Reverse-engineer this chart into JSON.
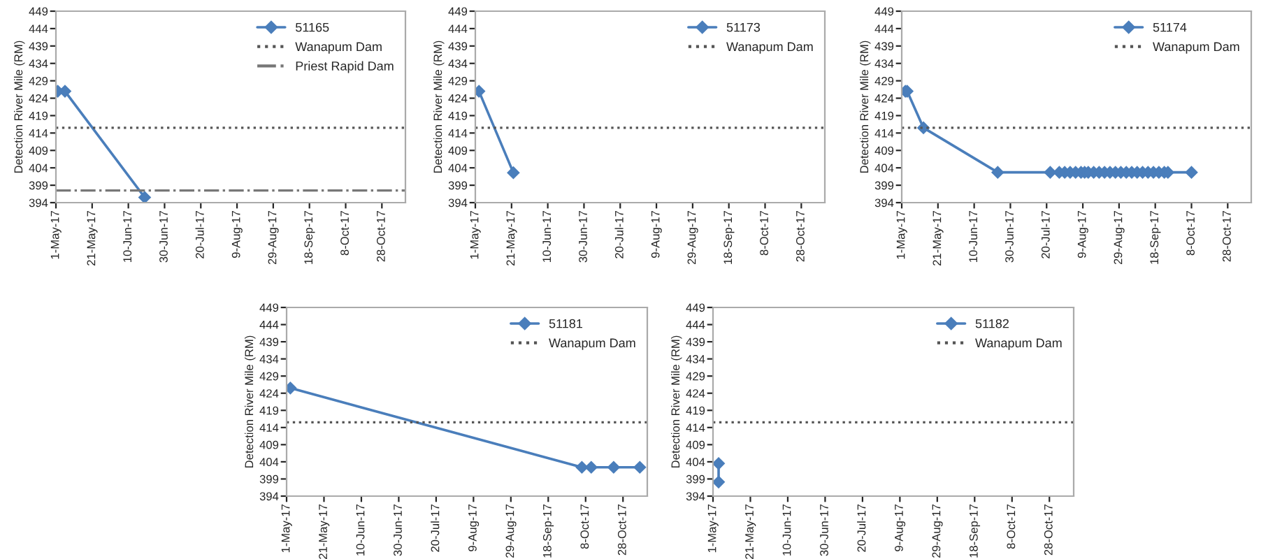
{
  "chart_data": [
    {
      "type": "line",
      "ylabel": "Detection River Mile (RM)",
      "xlim": [
        "2017-05-01",
        "2017-11-10"
      ],
      "ylim": [
        394,
        449
      ],
      "yticks": [
        394,
        399,
        404,
        409,
        414,
        419,
        424,
        429,
        434,
        439,
        444,
        449
      ],
      "xticks": [
        {
          "value": "2017-05-01",
          "label": "1-May-17"
        },
        {
          "value": "2017-05-21",
          "label": "21-May-17"
        },
        {
          "value": "2017-06-10",
          "label": "10-Jun-17"
        },
        {
          "value": "2017-06-30",
          "label": "30-Jun-17"
        },
        {
          "value": "2017-07-20",
          "label": "20-Jul-17"
        },
        {
          "value": "2017-08-09",
          "label": "9-Aug-17"
        },
        {
          "value": "2017-08-29",
          "label": "29-Aug-17"
        },
        {
          "value": "2017-09-18",
          "label": "18-Sep-17"
        },
        {
          "value": "2017-10-08",
          "label": "8-Oct-17"
        },
        {
          "value": "2017-10-28",
          "label": "28-Oct-17"
        }
      ],
      "series": [
        {
          "name": "51165",
          "color": "#4a7ebb",
          "x": [
            "2017-05-02",
            "2017-05-06",
            "2017-06-19"
          ],
          "values": [
            426,
            426,
            395.5
          ]
        }
      ],
      "ref_lines": [
        {
          "axis": "y",
          "value": 415.5,
          "label": "Wanapum Dam",
          "color": "#555555",
          "line_style": "dotted"
        },
        {
          "axis": "y",
          "value": 397.5,
          "label": "Priest Rapid Dam",
          "color": "#777777",
          "line_style": "dashdot"
        }
      ],
      "marker": "diamond",
      "line_style": "solid",
      "legend": "top right",
      "grid": false
    },
    {
      "type": "line",
      "ylabel": "Detection River Mile (RM)",
      "xlim": [
        "2017-05-01",
        "2017-11-10"
      ],
      "ylim": [
        394,
        449
      ],
      "yticks": [
        394,
        399,
        404,
        409,
        414,
        419,
        424,
        429,
        434,
        439,
        444,
        449
      ],
      "xticks": [
        {
          "value": "2017-05-01",
          "label": "1-May-17"
        },
        {
          "value": "2017-05-21",
          "label": "21-May-17"
        },
        {
          "value": "2017-06-10",
          "label": "10-Jun-17"
        },
        {
          "value": "2017-06-30",
          "label": "30-Jun-17"
        },
        {
          "value": "2017-07-20",
          "label": "20-Jul-17"
        },
        {
          "value": "2017-08-09",
          "label": "9-Aug-17"
        },
        {
          "value": "2017-08-29",
          "label": "29-Aug-17"
        },
        {
          "value": "2017-09-18",
          "label": "18-Sep-17"
        },
        {
          "value": "2017-10-08",
          "label": "8-Oct-17"
        },
        {
          "value": "2017-10-28",
          "label": "28-Oct-17"
        }
      ],
      "series": [
        {
          "name": "51173",
          "color": "#4a7ebb",
          "x": [
            "2017-05-03",
            "2017-05-22"
          ],
          "values": [
            426,
            402.6
          ]
        }
      ],
      "ref_lines": [
        {
          "axis": "y",
          "value": 415.5,
          "label": "Wanapum Dam",
          "color": "#555555",
          "line_style": "dotted"
        }
      ],
      "marker": "diamond",
      "line_style": "solid",
      "legend": "top right",
      "grid": false
    },
    {
      "type": "line",
      "ylabel": "Detection River Mile (RM)",
      "xlim": [
        "2017-05-01",
        "2017-11-10"
      ],
      "ylim": [
        394,
        449
      ],
      "yticks": [
        394,
        399,
        404,
        409,
        414,
        419,
        424,
        429,
        434,
        439,
        444,
        449
      ],
      "xticks": [
        {
          "value": "2017-05-01",
          "label": "1-May-17"
        },
        {
          "value": "2017-05-21",
          "label": "21-May-17"
        },
        {
          "value": "2017-06-10",
          "label": "10-Jun-17"
        },
        {
          "value": "2017-06-30",
          "label": "30-Jun-17"
        },
        {
          "value": "2017-07-20",
          "label": "20-Jul-17"
        },
        {
          "value": "2017-08-09",
          "label": "9-Aug-17"
        },
        {
          "value": "2017-08-29",
          "label": "29-Aug-17"
        },
        {
          "value": "2017-09-18",
          "label": "18-Sep-17"
        },
        {
          "value": "2017-10-08",
          "label": "8-Oct-17"
        },
        {
          "value": "2017-10-28",
          "label": "28-Oct-17"
        }
      ],
      "series": [
        {
          "name": "51174",
          "color": "#4a7ebb",
          "x": [
            "2017-05-03",
            "2017-05-04",
            "2017-05-13",
            "2017-06-23",
            "2017-07-22",
            "2017-07-27",
            "2017-07-30",
            "2017-08-02",
            "2017-08-05",
            "2017-08-08",
            "2017-08-10",
            "2017-08-12",
            "2017-08-15",
            "2017-08-18",
            "2017-08-21",
            "2017-08-24",
            "2017-08-27",
            "2017-08-30",
            "2017-09-02",
            "2017-09-05",
            "2017-09-08",
            "2017-09-11",
            "2017-09-14",
            "2017-09-17",
            "2017-09-20",
            "2017-09-23",
            "2017-09-25",
            "2017-10-08"
          ],
          "values": [
            426,
            426,
            415.5,
            402.7,
            402.7,
            402.7,
            402.7,
            402.7,
            402.7,
            402.7,
            402.7,
            402.7,
            402.7,
            402.7,
            402.7,
            402.7,
            402.7,
            402.7,
            402.7,
            402.7,
            402.7,
            402.7,
            402.7,
            402.7,
            402.7,
            402.7,
            402.7,
            402.7
          ]
        }
      ],
      "ref_lines": [
        {
          "axis": "y",
          "value": 415.5,
          "label": "Wanapum Dam",
          "color": "#555555",
          "line_style": "dotted"
        }
      ],
      "marker": "diamond",
      "line_style": "solid",
      "legend": "top right",
      "grid": false
    },
    {
      "type": "line",
      "ylabel": "Detection River Mile (RM)",
      "xlim": [
        "2017-05-01",
        "2017-11-10"
      ],
      "ylim": [
        394,
        449
      ],
      "yticks": [
        394,
        399,
        404,
        409,
        414,
        419,
        424,
        429,
        434,
        439,
        444,
        449
      ],
      "xticks": [
        {
          "value": "2017-05-01",
          "label": "1-May-17"
        },
        {
          "value": "2017-05-21",
          "label": "21-May-17"
        },
        {
          "value": "2017-06-10",
          "label": "10-Jun-17"
        },
        {
          "value": "2017-06-30",
          "label": "30-Jun-17"
        },
        {
          "value": "2017-07-20",
          "label": "20-Jul-17"
        },
        {
          "value": "2017-08-09",
          "label": "9-Aug-17"
        },
        {
          "value": "2017-08-29",
          "label": "29-Aug-17"
        },
        {
          "value": "2017-09-18",
          "label": "18-Sep-17"
        },
        {
          "value": "2017-10-08",
          "label": "8-Oct-17"
        },
        {
          "value": "2017-10-28",
          "label": "28-Oct-17"
        }
      ],
      "series": [
        {
          "name": "51181",
          "color": "#4a7ebb",
          "x": [
            "2017-05-03",
            "2017-10-06",
            "2017-10-11",
            "2017-10-23",
            "2017-11-06"
          ],
          "values": [
            425.5,
            402.4,
            402.4,
            402.4,
            402.4
          ]
        }
      ],
      "ref_lines": [
        {
          "axis": "y",
          "value": 415.5,
          "label": "Wanapum Dam",
          "color": "#555555",
          "line_style": "dotted"
        }
      ],
      "marker": "diamond",
      "line_style": "solid",
      "legend": "top right",
      "grid": false
    },
    {
      "type": "line",
      "ylabel": "Detection River Mile (RM)",
      "xlim": [
        "2017-05-01",
        "2017-11-10"
      ],
      "ylim": [
        394,
        449
      ],
      "yticks": [
        394,
        399,
        404,
        409,
        414,
        419,
        424,
        429,
        434,
        439,
        444,
        449
      ],
      "xticks": [
        {
          "value": "2017-05-01",
          "label": "1-May-17"
        },
        {
          "value": "2017-05-21",
          "label": "21-May-17"
        },
        {
          "value": "2017-06-10",
          "label": "10-Jun-17"
        },
        {
          "value": "2017-06-30",
          "label": "30-Jun-17"
        },
        {
          "value": "2017-07-20",
          "label": "20-Jul-17"
        },
        {
          "value": "2017-08-09",
          "label": "9-Aug-17"
        },
        {
          "value": "2017-08-29",
          "label": "29-Aug-17"
        },
        {
          "value": "2017-09-18",
          "label": "18-Sep-17"
        },
        {
          "value": "2017-10-08",
          "label": "8-Oct-17"
        },
        {
          "value": "2017-10-28",
          "label": "28-Oct-17"
        }
      ],
      "series": [
        {
          "name": "51182",
          "color": "#4a7ebb",
          "x": [
            "2017-05-04",
            "2017-05-04"
          ],
          "values": [
            403.5,
            398.1
          ]
        }
      ],
      "ref_lines": [
        {
          "axis": "y",
          "value": 415.5,
          "label": "Wanapum Dam",
          "color": "#555555",
          "line_style": "dotted"
        }
      ],
      "marker": "diamond",
      "line_style": "solid",
      "legend": "top right",
      "grid": false
    }
  ]
}
